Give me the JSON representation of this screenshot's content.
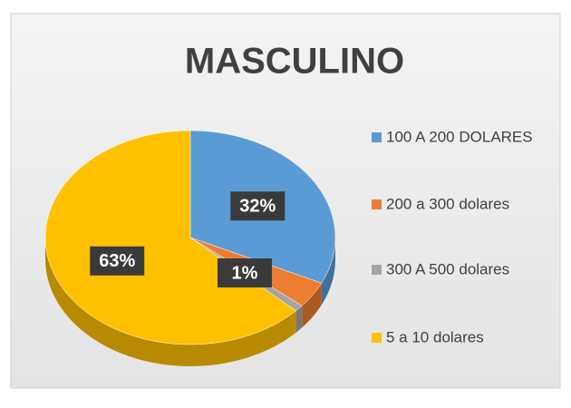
{
  "chart_data": {
    "type": "pie",
    "title": "MASCULINO",
    "categories": [
      "100 A 200 DOLARES",
      "200 a 300 dolares",
      "300 A 500 dolares",
      "5 a 10 dolares"
    ],
    "values": [
      32,
      4,
      1,
      63
    ],
    "value_labels": [
      "32%",
      null,
      "1%",
      "63%"
    ],
    "colors": [
      "#5b9bd5",
      "#ed7d31",
      "#a5a5a5",
      "#ffc000"
    ],
    "legend": "right"
  }
}
